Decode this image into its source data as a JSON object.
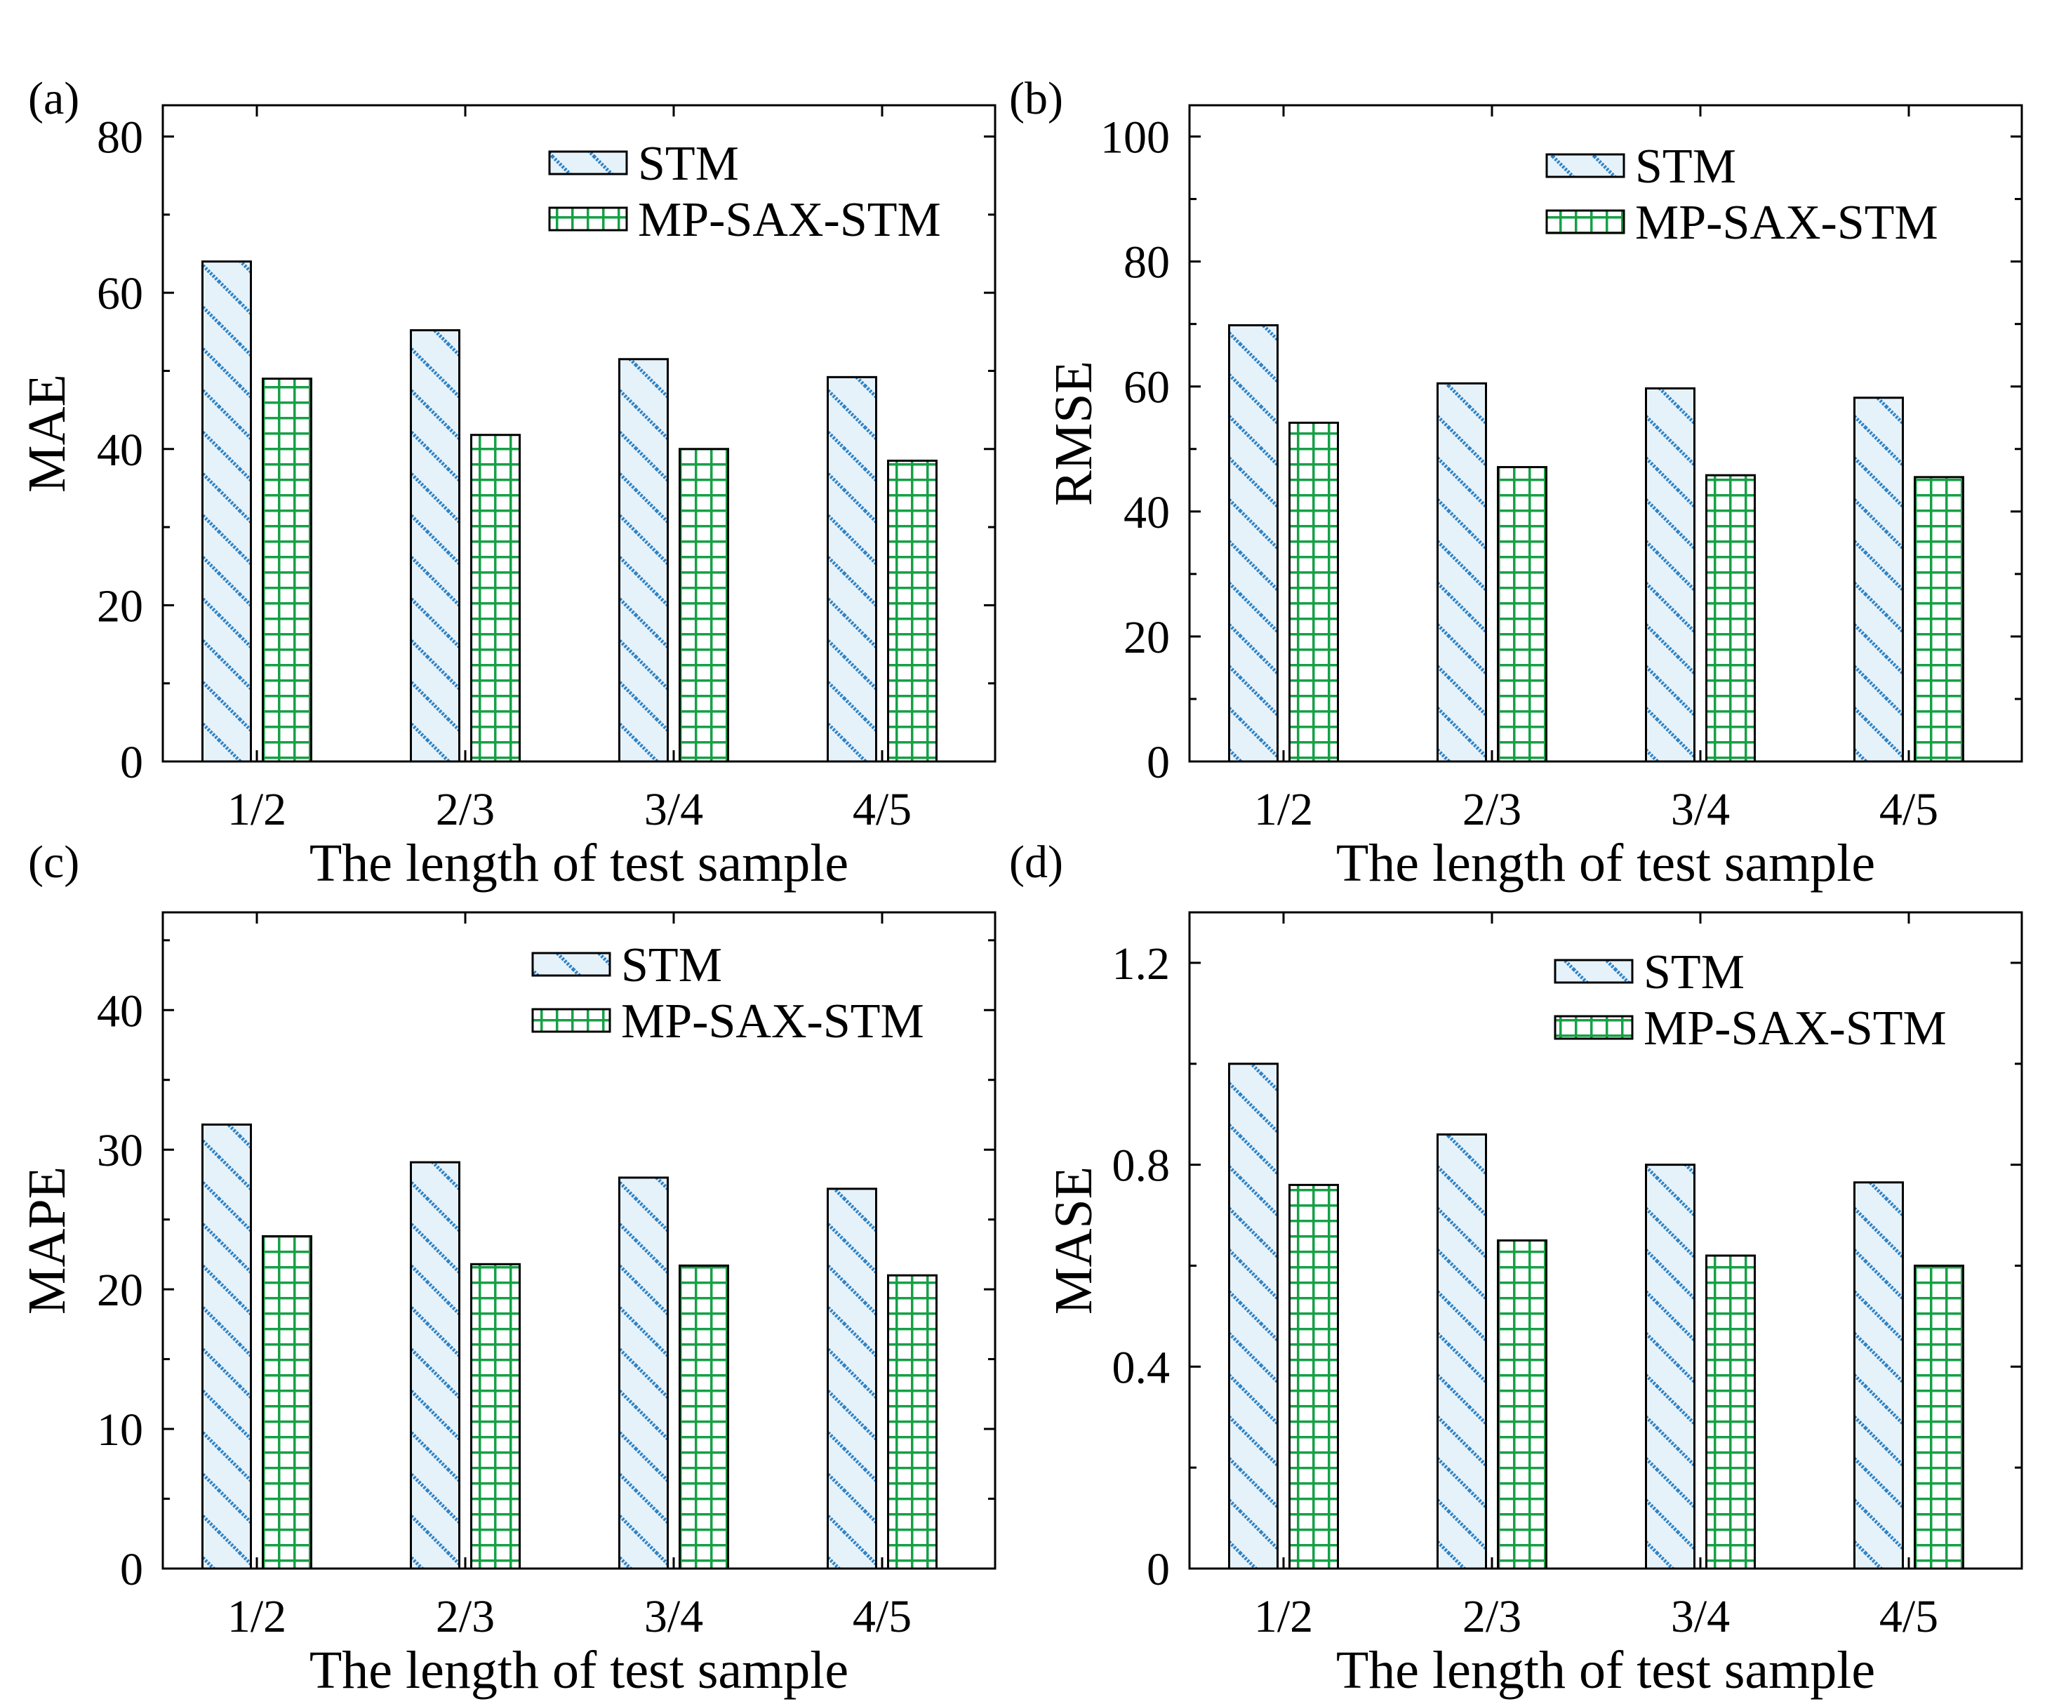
{
  "colors": {
    "stm_hatch": "#2f82c4",
    "stm_fill": "#e6f2fa",
    "mp_grid": "#16a046",
    "mp_fill": "#ffffff",
    "axis": "#000000"
  },
  "chart_data": [
    {
      "type": "bar",
      "panel": "(a)",
      "categories": [
        "1/2",
        "2/3",
        "3/4",
        "4/5"
      ],
      "series": [
        {
          "name": "STM",
          "values": [
            64,
            55.2,
            51.5,
            49.2
          ]
        },
        {
          "name": "MP-SAX-STM",
          "values": [
            49,
            41.8,
            40,
            38.5
          ]
        }
      ],
      "xlabel": "The length of test sample",
      "ylabel": "MAE",
      "ylim": [
        0,
        84
      ],
      "yticks": [
        0,
        20,
        40,
        60,
        80
      ],
      "ytick_labels": [
        "0",
        "20",
        "40",
        "60",
        "80"
      ],
      "legend": [
        "STM",
        "MP-SAX-STM"
      ],
      "legend_position": "top-right"
    },
    {
      "type": "bar",
      "panel": "(b)",
      "categories": [
        "1/2",
        "2/3",
        "3/4",
        "4/5"
      ],
      "series": [
        {
          "name": "STM",
          "values": [
            69.8,
            60.5,
            59.7,
            58.2
          ]
        },
        {
          "name": "MP-SAX-STM",
          "values": [
            54.2,
            47.1,
            45.8,
            45.5
          ]
        }
      ],
      "xlabel": "The length of test sample",
      "ylabel": "RMSE",
      "ylim": [
        0,
        105
      ],
      "yticks": [
        0,
        20,
        40,
        60,
        80,
        100
      ],
      "ytick_labels": [
        "0",
        "20",
        "40",
        "60",
        "80",
        "100"
      ],
      "legend": [
        "STM",
        "MP-SAX-STM"
      ],
      "legend_position": "top-right"
    },
    {
      "type": "bar",
      "panel": "(c)",
      "categories": [
        "1/2",
        "2/3",
        "3/4",
        "4/5"
      ],
      "series": [
        {
          "name": "STM",
          "values": [
            31.8,
            29.1,
            28,
            27.2
          ]
        },
        {
          "name": "MP-SAX-STM",
          "values": [
            23.8,
            21.8,
            21.7,
            21
          ]
        }
      ],
      "xlabel": "The length of test sample",
      "ylabel": "MAPE",
      "ylim": [
        0,
        47
      ],
      "yticks": [
        0,
        10,
        20,
        30,
        40
      ],
      "ytick_labels": [
        "0",
        "10",
        "20",
        "30",
        "40"
      ],
      "legend": [
        "STM",
        "MP-SAX-STM"
      ],
      "legend_position": "top-right"
    },
    {
      "type": "bar",
      "panel": "(d)",
      "categories": [
        "1/2",
        "2/3",
        "3/4",
        "4/5"
      ],
      "series": [
        {
          "name": "STM",
          "values": [
            1,
            0.86,
            0.8,
            0.765
          ]
        },
        {
          "name": "MP-SAX-STM",
          "values": [
            0.76,
            0.65,
            0.62,
            0.6
          ]
        }
      ],
      "xlabel": "The length of test sample",
      "ylabel": "MASE",
      "ylim": [
        0,
        1.3
      ],
      "yticks": [
        0,
        0.4,
        0.8,
        1.2
      ],
      "ytick_labels": [
        "0",
        "0.4",
        "0.8",
        "1.2"
      ],
      "legend": [
        "STM",
        "MP-SAX-STM"
      ],
      "legend_position": "top-right"
    }
  ]
}
